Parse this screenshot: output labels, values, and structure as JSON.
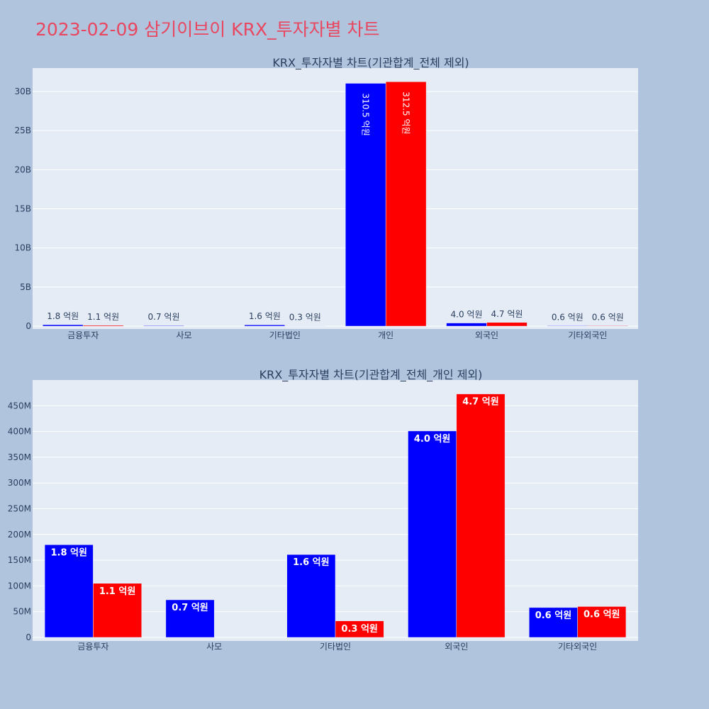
{
  "page": {
    "title": "2023-02-09 삼기이브이 KRX_투자자별 차트"
  },
  "colors": {
    "buy": "#0000ff",
    "sell": "#ff0000",
    "background": "#b0c4de",
    "plot": "#e5ecf6"
  },
  "chart_data": [
    {
      "type": "bar",
      "title": "KRX_투자자별 차트(기관합계_전체 제외)",
      "categories": [
        "금융투자",
        "사모",
        "기타법인",
        "개인",
        "외국인",
        "기타외국인"
      ],
      "ylim": [
        0,
        33000000000
      ],
      "yticks": [
        0,
        5000000000,
        10000000000,
        15000000000,
        20000000000,
        25000000000,
        30000000000
      ],
      "ytick_labels": [
        "0",
        "5B",
        "10B",
        "15B",
        "20B",
        "25B",
        "30B"
      ],
      "series": [
        {
          "values": [
            180000000,
            73000000,
            161000000,
            31050000000,
            401000000,
            58000000
          ],
          "labels": [
            "1.8 억원",
            "0.7 억원",
            "1.6 억원",
            "310.5 억원",
            "4.0 억원",
            "0.6 억원"
          ]
        },
        {
          "values": [
            105000000,
            0,
            32000000,
            31250000000,
            473000000,
            60000000
          ],
          "labels": [
            "1.1 억원",
            "",
            "0.3 억원",
            "312.5 억원",
            "4.7 억원",
            "0.6 억원"
          ]
        }
      ]
    },
    {
      "type": "bar",
      "title": "KRX_투자자별 차트(기관합계_전체_개인 제외)",
      "categories": [
        "금융투자",
        "사모",
        "기타법인",
        "외국인",
        "기타외국인"
      ],
      "ylim": [
        0,
        500000000
      ],
      "yticks": [
        0,
        50000000,
        100000000,
        150000000,
        200000000,
        250000000,
        300000000,
        350000000,
        400000000,
        450000000
      ],
      "ytick_labels": [
        "0",
        "50M",
        "100M",
        "150M",
        "200M",
        "250M",
        "300M",
        "350M",
        "400M",
        "450M"
      ],
      "series": [
        {
          "values": [
            180000000,
            73000000,
            161000000,
            401000000,
            58000000
          ],
          "labels": [
            "1.8 억원",
            "0.7 억원",
            "1.6 억원",
            "4.0 억원",
            "0.6 억원"
          ]
        },
        {
          "values": [
            105000000,
            0,
            32000000,
            473000000,
            60000000
          ],
          "labels": [
            "1.1 억원",
            "",
            "0.3 억원",
            "4.7 억원",
            "0.6 억원"
          ]
        }
      ]
    }
  ]
}
